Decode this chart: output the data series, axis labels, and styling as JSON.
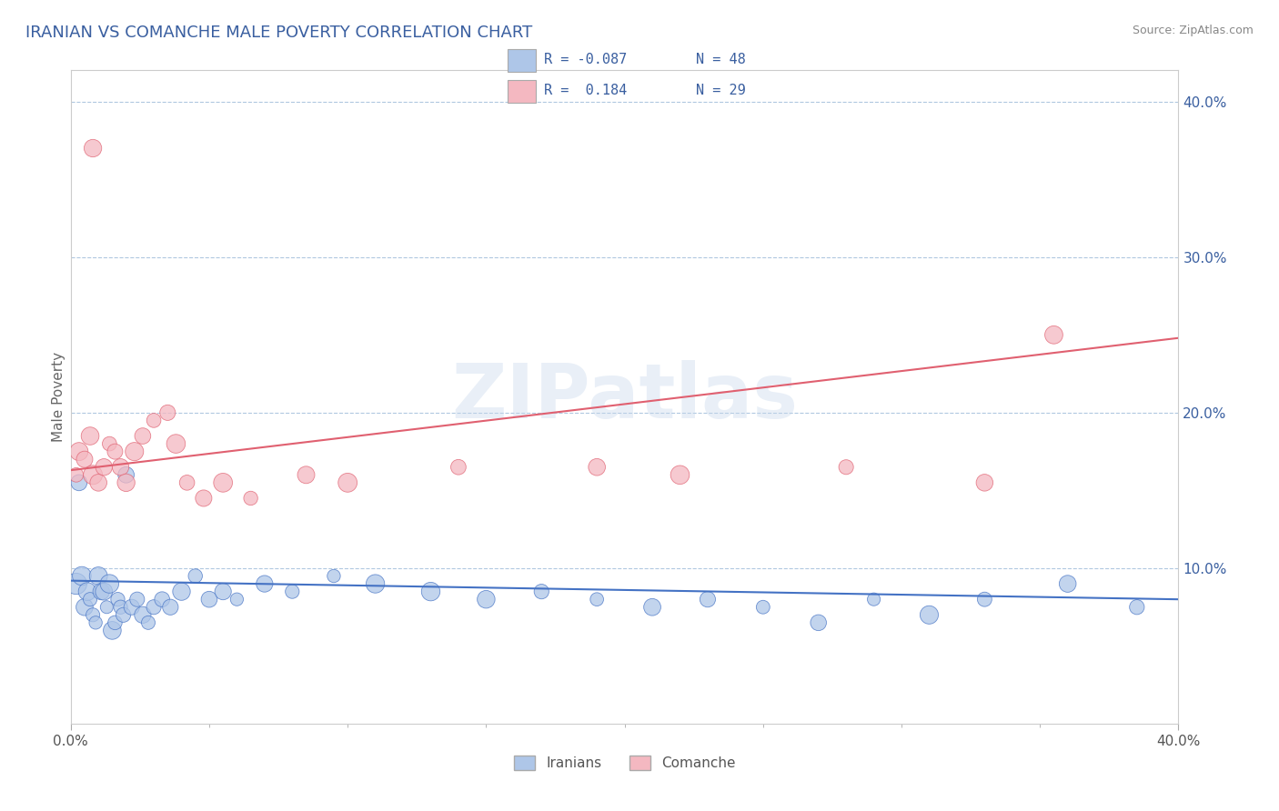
{
  "title": "IRANIAN VS COMANCHE MALE POVERTY CORRELATION CHART",
  "source_text": "Source: ZipAtlas.com",
  "ylabel": "Male Poverty",
  "xlim": [
    0.0,
    0.4
  ],
  "ylim": [
    0.0,
    0.42
  ],
  "ytick_values": [
    0.1,
    0.2,
    0.3,
    0.4
  ],
  "iranian_color": "#aec6e8",
  "comanche_color": "#f4b8c1",
  "iranian_line_color": "#4472c4",
  "comanche_line_color": "#e06070",
  "iranian_R": -0.087,
  "iranian_N": 48,
  "comanche_R": 0.184,
  "comanche_N": 29,
  "watermark": "ZIPatlas",
  "iranians_x": [
    0.002,
    0.004,
    0.005,
    0.006,
    0.007,
    0.008,
    0.009,
    0.01,
    0.011,
    0.012,
    0.013,
    0.014,
    0.015,
    0.016,
    0.017,
    0.018,
    0.019,
    0.02,
    0.022,
    0.024,
    0.026,
    0.028,
    0.03,
    0.033,
    0.036,
    0.04,
    0.045,
    0.05,
    0.055,
    0.06,
    0.07,
    0.08,
    0.095,
    0.11,
    0.13,
    0.15,
    0.17,
    0.19,
    0.21,
    0.23,
    0.25,
    0.27,
    0.29,
    0.31,
    0.33,
    0.36,
    0.385,
    0.003
  ],
  "iranians_y": [
    0.09,
    0.095,
    0.075,
    0.085,
    0.08,
    0.07,
    0.065,
    0.095,
    0.085,
    0.085,
    0.075,
    0.09,
    0.06,
    0.065,
    0.08,
    0.075,
    0.07,
    0.16,
    0.075,
    0.08,
    0.07,
    0.065,
    0.075,
    0.08,
    0.075,
    0.085,
    0.095,
    0.08,
    0.085,
    0.08,
    0.09,
    0.085,
    0.095,
    0.09,
    0.085,
    0.08,
    0.085,
    0.08,
    0.075,
    0.08,
    0.075,
    0.065,
    0.08,
    0.07,
    0.08,
    0.09,
    0.075,
    0.155
  ],
  "comanche_x": [
    0.002,
    0.003,
    0.005,
    0.007,
    0.008,
    0.01,
    0.012,
    0.014,
    0.016,
    0.018,
    0.02,
    0.023,
    0.026,
    0.03,
    0.035,
    0.038,
    0.042,
    0.048,
    0.055,
    0.065,
    0.085,
    0.1,
    0.14,
    0.19,
    0.22,
    0.28,
    0.33,
    0.355,
    0.008
  ],
  "comanche_y": [
    0.16,
    0.175,
    0.17,
    0.185,
    0.16,
    0.155,
    0.165,
    0.18,
    0.175,
    0.165,
    0.155,
    0.175,
    0.185,
    0.195,
    0.2,
    0.18,
    0.155,
    0.145,
    0.155,
    0.145,
    0.16,
    0.155,
    0.165,
    0.165,
    0.16,
    0.165,
    0.155,
    0.25,
    0.37
  ],
  "legend_text_color": "#3a5fa0",
  "background_color": "#ffffff",
  "grid_color": "#b0c8e0",
  "title_color": "#3a5fa0",
  "title_fontsize": 13,
  "iranian_line_start_y": 0.092,
  "iranian_line_end_y": 0.08,
  "comanche_line_start_y": 0.163,
  "comanche_line_end_y": 0.248
}
